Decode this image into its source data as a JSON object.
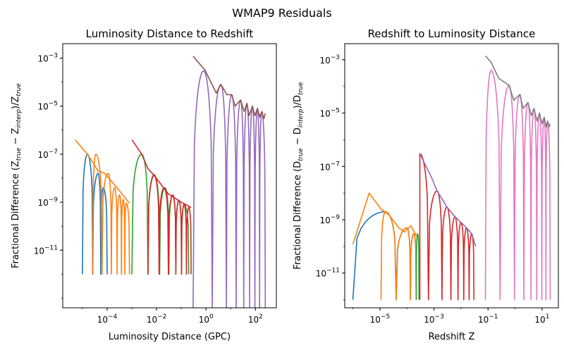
{
  "figure_title": "WMAP9 Residuals",
  "chart_data": [
    {
      "type": "line",
      "title": "Luminosity Distance to Redshift",
      "xlabel": "Luminosity Distance (GPC)",
      "ylabel": "Fractional Difference $(Z_{true} - Z_{interp})/Z_{true}$",
      "xscale": "log",
      "yscale": "log",
      "xlim": [
        1.6e-06,
        700
      ],
      "ylim": [
        4e-14,
        0.004
      ],
      "x_ticks": [
        {
          "value": 0.0001,
          "base": "10",
          "exp": "−4"
        },
        {
          "value": 0.01,
          "base": "10",
          "exp": "−2"
        },
        {
          "value": 1,
          "base": "10",
          "exp": "0"
        },
        {
          "value": 100,
          "base": "10",
          "exp": "2"
        }
      ],
      "y_ticks": [
        {
          "value": 1e-11,
          "base": "10",
          "exp": "−11"
        },
        {
          "value": 1e-09,
          "base": "10",
          "exp": "−9"
        },
        {
          "value": 1e-07,
          "base": "10",
          "exp": "−7"
        },
        {
          "value": 1e-05,
          "base": "10",
          "exp": "−5"
        },
        {
          "value": 0.001,
          "base": "10",
          "exp": "−3"
        }
      ],
      "series": [
        {
          "color": "#1f77b4",
          "kind": "oscillation",
          "x_range": [
            1e-05,
            0.0001
          ],
          "floor": 1e-12,
          "peaks": [
            [
              1.6e-05,
              1e-07
            ],
            [
              4.3e-05,
              1.6e-08
            ],
            [
              7e-05,
              4e-09
            ]
          ]
        },
        {
          "color": "#ff7f0e",
          "kind": "oscillation",
          "x_range": [
            2.6e-05,
            0.0008
          ],
          "floor": 1e-12,
          "peaks": [
            [
              3.5e-05,
              1e-07
            ],
            [
              0.00011,
              1.6e-08
            ],
            [
              0.0002,
              4e-09
            ],
            [
              0.00032,
              2e-09
            ],
            [
              0.00045,
              1.3e-09
            ],
            [
              0.0006,
              9e-10
            ]
          ]
        },
        {
          "color": "#ff7f0e",
          "kind": "envelope",
          "points": [
            [
              5e-06,
              4e-07
            ],
            [
              1.6e-05,
              1e-07
            ],
            [
              4.3e-05,
              2e-08
            ],
            [
              8e-05,
              1.6e-08
            ],
            [
              0.00025,
              4e-09
            ],
            [
              0.0008,
              9e-10
            ]
          ]
        },
        {
          "color": "#2ca02c",
          "kind": "oscillation",
          "x_range": [
            0.001,
            0.2
          ],
          "floor": 1e-12,
          "peaks": [
            [
              0.0025,
              1e-07
            ],
            [
              0.008,
              1.4e-08
            ],
            [
              0.022,
              4e-09
            ],
            [
              0.045,
              2e-09
            ],
            [
              0.08,
              1.2e-09
            ],
            [
              0.13,
              8e-10
            ]
          ]
        },
        {
          "color": "#d62728",
          "kind": "oscillation",
          "x_range": [
            0.0045,
            0.25
          ],
          "floor": 1e-12,
          "peaks": [
            [
              0.008,
              1.3e-08
            ],
            [
              0.02,
              4e-09
            ],
            [
              0.045,
              2e-09
            ],
            [
              0.08,
              1.2e-09
            ],
            [
              0.13,
              8e-10
            ],
            [
              0.2,
              6e-10
            ]
          ]
        },
        {
          "color": "#d62728",
          "kind": "envelope",
          "points": [
            [
              0.001,
              4e-07
            ],
            [
              0.0025,
              1e-07
            ],
            [
              0.0045,
              2.5e-08
            ],
            [
              0.008,
              1.3e-08
            ],
            [
              0.03,
              2.2e-09
            ],
            [
              0.1,
              1e-09
            ],
            [
              0.25,
              6e-10
            ]
          ]
        },
        {
          "color": "#9467bd",
          "kind": "oscillation",
          "x_range": [
            0.3,
            250
          ],
          "floor": 4e-14,
          "peaks": [
            [
              0.8,
              0.0003
            ],
            [
              4,
              8e-05
            ],
            [
              11,
              3e-05
            ],
            [
              25,
              1.8e-05
            ],
            [
              45,
              1.3e-05
            ],
            [
              75,
              1e-05
            ],
            [
              120,
              8e-06
            ],
            [
              180,
              6e-06
            ]
          ]
        },
        {
          "color": "#8c564b",
          "kind": "envelope",
          "points": [
            [
              0.3,
              0.0012
            ],
            [
              0.9,
              0.00032
            ],
            [
              2.6,
              3.5e-05
            ],
            [
              4,
              8e-05
            ],
            [
              7,
              3e-05
            ],
            [
              11,
              3e-05
            ],
            [
              15,
              1e-05
            ],
            [
              25,
              1.8e-05
            ],
            [
              35,
              6e-06
            ],
            [
              45,
              1.3e-05
            ],
            [
              55,
              4e-06
            ],
            [
              75,
              1e-05
            ],
            [
              95,
              4e-06
            ],
            [
              120,
              8e-06
            ],
            [
              150,
              3.5e-06
            ],
            [
              180,
              6e-06
            ],
            [
              220,
              3e-06
            ],
            [
              250,
              5e-06
            ]
          ]
        }
      ]
    },
    {
      "type": "line",
      "title": "Redshift to Luminosity Distance",
      "xlabel": "Redshift Z",
      "ylabel": "Fractional Difference $(D_{true} - D_{interp})/D_{true}$",
      "xscale": "log",
      "yscale": "log",
      "xlim": [
        5e-07,
        40
      ],
      "ylim": [
        5e-13,
        0.004
      ],
      "x_ticks": [
        {
          "value": 1e-05,
          "base": "10",
          "exp": "−5"
        },
        {
          "value": 0.001,
          "base": "10",
          "exp": "−3"
        },
        {
          "value": 0.1,
          "base": "10",
          "exp": "−1"
        },
        {
          "value": 10,
          "base": "10",
          "exp": "1"
        }
      ],
      "y_ticks": [
        {
          "value": 1e-11,
          "base": "10",
          "exp": "−11"
        },
        {
          "value": 1e-09,
          "base": "10",
          "exp": "−9"
        },
        {
          "value": 1e-07,
          "base": "10",
          "exp": "−7"
        },
        {
          "value": 1e-05,
          "base": "10",
          "exp": "−5"
        },
        {
          "value": 0.001,
          "base": "10",
          "exp": "−3"
        }
      ],
      "series": [
        {
          "color": "#1f77b4",
          "kind": "oscillation",
          "x_range": [
            1e-06,
            0.00022
          ],
          "floor": 1e-12,
          "peaks": [
            [
              1.6e-05,
              2e-09
            ],
            [
              0.0001,
              5e-10
            ],
            [
              0.00018,
              3e-10
            ]
          ]
        },
        {
          "color": "#ff7f0e",
          "kind": "envelope",
          "points": [
            [
              1e-06,
              1.2e-10
            ],
            [
              4e-06,
              1e-08
            ],
            [
              1.1e-05,
              2.5e-09
            ],
            [
              2.2e-05,
              1.5e-09
            ],
            [
              5e-05,
              5e-10
            ],
            [
              8e-05,
              3.5e-10
            ],
            [
              0.00014,
              6e-10
            ],
            [
              0.00022,
              2.5e-10
            ]
          ]
        },
        {
          "color": "#ff7f0e",
          "kind": "oscillation",
          "x_range": [
            1.1e-05,
            0.00022
          ],
          "floor": 1e-12,
          "peaks": [
            [
              1.6e-05,
              2e-09
            ],
            [
              0.0001,
              5e-10
            ],
            [
              0.00018,
              3e-10
            ]
          ]
        },
        {
          "color": "#2ca02c",
          "kind": "oscillation",
          "x_range": [
            0.00022,
            0.00028
          ],
          "floor": 1e-12,
          "peaks": [
            [
              0.00025,
              3e-10
            ]
          ]
        },
        {
          "color": "#d62728",
          "kind": "oscillation",
          "x_range": [
            0.0003,
            0.03
          ],
          "floor": 1e-12,
          "peaks": [
            [
              0.0003,
              3e-07
            ],
            [
              0.0013,
              1.2e-08
            ],
            [
              0.003,
              3e-09
            ],
            [
              0.006,
              1.3e-09
            ],
            [
              0.01,
              8e-10
            ],
            [
              0.016,
              5e-10
            ],
            [
              0.025,
              3e-10
            ]
          ]
        },
        {
          "color": "#9467bd",
          "kind": "envelope",
          "points": [
            [
              0.0003,
              3e-07
            ],
            [
              0.0008,
              4e-08
            ],
            [
              0.0013,
              1.2e-08
            ],
            [
              0.002,
              6e-09
            ],
            [
              0.003,
              3e-09
            ],
            [
              0.006,
              1.3e-09
            ],
            [
              0.01,
              8e-10
            ],
            [
              0.016,
              5e-10
            ],
            [
              0.025,
              3e-10
            ],
            [
              0.035,
              1e-10
            ]
          ]
        },
        {
          "color": "#e377c2",
          "kind": "oscillation",
          "x_range": [
            0.08,
            20
          ],
          "floor": 1e-12,
          "peaks": [
            [
              0.13,
              0.0004
            ],
            [
              0.6,
              0.00011
            ],
            [
              1.5,
              5e-05
            ],
            [
              3,
              2.5e-05
            ],
            [
              5,
              1.5e-05
            ],
            [
              8,
              1e-05
            ],
            [
              12,
              7e-06
            ],
            [
              16,
              5e-06
            ]
          ]
        },
        {
          "color": "#7f7f7f",
          "kind": "envelope",
          "points": [
            [
              0.08,
              0.0014
            ],
            [
              0.13,
              0.0008
            ],
            [
              0.25,
              0.0002
            ],
            [
              0.6,
              0.00011
            ],
            [
              0.9,
              3e-05
            ],
            [
              1.5,
              5e-05
            ],
            [
              2,
              1.5e-05
            ],
            [
              3,
              2.5e-05
            ],
            [
              4,
              8e-06
            ],
            [
              5,
              1.5e-05
            ],
            [
              6.5,
              5e-06
            ],
            [
              8,
              1e-05
            ],
            [
              10,
              4e-06
            ],
            [
              12,
              7e-06
            ],
            [
              14,
              3e-06
            ],
            [
              16,
              5e-06
            ],
            [
              18,
              3e-06
            ],
            [
              20,
              4e-06
            ]
          ]
        }
      ]
    }
  ]
}
